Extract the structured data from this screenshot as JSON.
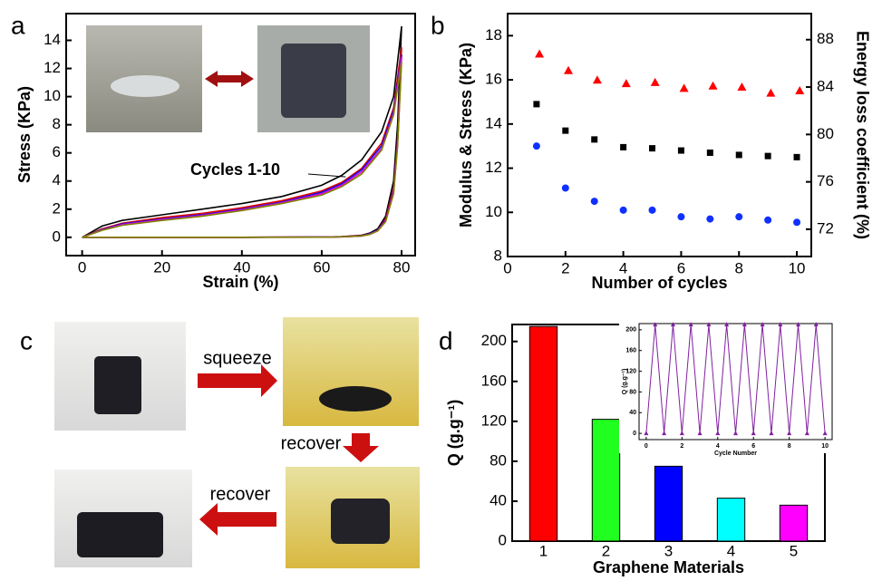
{
  "chart_data": [
    {
      "type": "line",
      "panel": "a",
      "xlabel": "Strain (%)",
      "ylabel": "Stress (KPa)",
      "annotation": "Cycles 1-10",
      "xlim": [
        -4,
        83.4
      ],
      "ylim": [
        -1.3,
        15.9
      ],
      "xticks": [
        0,
        20,
        40,
        60,
        80
      ],
      "yticks": [
        0,
        2,
        4,
        6,
        8,
        10,
        12,
        14
      ],
      "x": [
        0,
        5,
        10,
        20,
        30,
        40,
        50,
        60,
        65,
        70,
        75,
        78,
        80,
        79,
        78,
        76,
        74,
        72,
        70,
        65,
        60,
        40,
        20,
        0
      ],
      "series": [
        {
          "color": "#000000",
          "values": [
            0,
            0.8,
            1.2,
            1.6,
            2.0,
            2.4,
            2.9,
            3.7,
            4.4,
            5.5,
            7.5,
            10,
            15,
            8,
            4,
            1.5,
            0.6,
            0.3,
            0.15,
            0.05,
            0.02,
            0,
            0,
            0
          ]
        },
        {
          "color": "#e00000",
          "values": [
            0,
            0.6,
            1.0,
            1.4,
            1.7,
            2.1,
            2.6,
            3.3,
            3.9,
            4.9,
            6.7,
            9.2,
            13.5,
            7,
            3.5,
            1.3,
            0.5,
            0.25,
            0.12,
            0.04,
            0.02,
            0,
            0,
            0
          ]
        },
        {
          "color": "#1010e0",
          "values": [
            0,
            0.55,
            0.95,
            1.3,
            1.6,
            2.0,
            2.5,
            3.2,
            3.8,
            4.8,
            6.5,
            9,
            13,
            6.8,
            3.3,
            1.2,
            0.5,
            0.25,
            0.1,
            0.04,
            0.02,
            0,
            0,
            0
          ]
        },
        {
          "color": "#e000e0",
          "values": [
            0,
            0.52,
            0.9,
            1.25,
            1.55,
            1.95,
            2.45,
            3.1,
            3.7,
            4.65,
            6.3,
            8.8,
            12.8,
            6.6,
            3.2,
            1.15,
            0.47,
            0.22,
            0.1,
            0.03,
            0.01,
            0,
            0,
            0
          ]
        },
        {
          "color": "#808000",
          "values": [
            0,
            0.5,
            0.85,
            1.2,
            1.5,
            1.9,
            2.4,
            3.0,
            3.6,
            4.5,
            6.2,
            8.7,
            12.5,
            6.5,
            3.1,
            1.1,
            0.45,
            0.2,
            0.1,
            0.03,
            0.01,
            0,
            0,
            0
          ]
        }
      ]
    },
    {
      "type": "scatter",
      "panel": "b",
      "xlabel": "Number of cycles",
      "ylabel": "Modulus & Stress (KPa)",
      "y2label": "Energy loss coefficient (%)",
      "xlim": [
        0,
        10.5
      ],
      "ylim": [
        8,
        19
      ],
      "y2lim": [
        69.7,
        90.2
      ],
      "xticks": [
        0,
        2,
        4,
        6,
        8,
        10
      ],
      "yticks": [
        8,
        10,
        12,
        14,
        16,
        18
      ],
      "y2ticks": [
        72,
        76,
        80,
        84,
        88
      ],
      "series": [
        {
          "color": "#000000",
          "marker": "square",
          "x": [
            1,
            2,
            3,
            4,
            5,
            6,
            7,
            8,
            9,
            10
          ],
          "values": [
            14.9,
            13.7,
            13.3,
            12.95,
            12.9,
            12.8,
            12.7,
            12.6,
            12.55,
            12.5
          ]
        },
        {
          "color": "#1030ff",
          "marker": "circle",
          "x": [
            1,
            2,
            3,
            4,
            5,
            6,
            7,
            8,
            9,
            10
          ],
          "values": [
            13.0,
            11.1,
            10.5,
            10.1,
            10.1,
            9.8,
            9.7,
            9.8,
            9.65,
            9.55
          ]
        },
        {
          "color": "#ff0000",
          "marker": "triangle",
          "axis": "y2",
          "x": [
            1.1,
            2.1,
            3.1,
            4.1,
            5.1,
            6.1,
            7.1,
            8.1,
            9.1,
            10.1
          ],
          "values": [
            86.8,
            85.4,
            84.6,
            84.3,
            84.4,
            83.9,
            84.1,
            84.0,
            83.5,
            83.7
          ]
        }
      ]
    },
    {
      "type": "bar",
      "panel": "d",
      "xlabel": "Graphene Materials",
      "ylabel": "Q (g.g⁻¹)",
      "categories": [
        "1",
        "2",
        "3",
        "4",
        "5"
      ],
      "values": [
        215,
        122,
        75,
        43,
        36
      ],
      "colors": [
        "#ff0000",
        "#20ff20",
        "#0000ff",
        "#00ffff",
        "#ff00ff"
      ],
      "ylim": [
        0,
        217
      ],
      "yticks": [
        0,
        40,
        80,
        120,
        160,
        200
      ]
    },
    {
      "type": "line",
      "xlabel": "Cycle Number",
      "ylabel": "Q (g.g⁻¹)",
      "markers": true,
      "xlim": [
        -0.4,
        10.4
      ],
      "ylim": [
        -12,
        212
      ],
      "xticks": [
        0,
        2,
        4,
        6,
        8,
        10
      ],
      "yticks": [
        0,
        40,
        80,
        120,
        160,
        200
      ],
      "x": [
        0,
        0.5,
        1,
        1.5,
        2,
        2.5,
        3,
        3.5,
        4,
        4.5,
        5,
        5.5,
        6,
        6.5,
        7,
        7.5,
        8,
        8.5,
        9,
        9.5,
        10
      ],
      "series": [
        {
          "color": "#8020a0",
          "values": [
            0,
            210,
            0,
            210,
            0,
            210,
            0,
            210,
            0,
            210,
            0,
            210,
            0,
            210,
            0,
            210,
            0,
            210,
            0,
            210,
            0
          ]
        }
      ]
    }
  ],
  "panel_c": {
    "label": "c",
    "squeeze": "squeeze",
    "recover_down": "recover",
    "recover_left": "recover"
  }
}
